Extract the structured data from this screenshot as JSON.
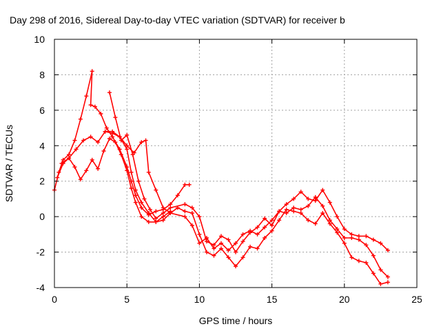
{
  "chart_data": {
    "type": "scatter",
    "marker": "plus",
    "title": "Day 298 of 2016, Sidereal Day-to-day VTEC variation (SDTVAR) for receiver b",
    "xlabel": "GPS time / hours",
    "ylabel": "SDTVAR / TECUs",
    "xlim": [
      0,
      25
    ],
    "ylim": [
      -4,
      10
    ],
    "xticks": [
      "0",
      "5",
      "10",
      "15",
      "20",
      "25"
    ],
    "yticks": [
      "-4",
      "-2",
      "0",
      "2",
      "4",
      "6",
      "8",
      "10"
    ],
    "grid": true,
    "colors": {
      "series": "#ff0000"
    },
    "series": [
      {
        "x": [
          0,
          0.3,
          0.6,
          1.0,
          1.4,
          1.8,
          2.2,
          2.6,
          2.5,
          2.8,
          3.2,
          3.6,
          4.0,
          4.5,
          5.0,
          5.3,
          5.6,
          6.0,
          6.5,
          7.0,
          7.5,
          8.0,
          8.5,
          9.0,
          9.3
        ],
        "y": [
          1.5,
          2.5,
          3.2,
          3.5,
          4.3,
          5.5,
          6.8,
          8.2,
          6.3,
          6.2,
          5.8,
          5.0,
          4.5,
          3.8,
          2.8,
          2.0,
          1.2,
          0.5,
          0.1,
          0.3,
          0.4,
          0.7,
          1.2,
          1.8,
          1.8
        ]
      },
      {
        "x": [
          0.2,
          0.6,
          1.0,
          1.4,
          1.8,
          2.2,
          2.6,
          3.0,
          3.4,
          3.8,
          4.2,
          4.6,
          5.0,
          5.3,
          5.6,
          6.0,
          6.5,
          7.0,
          7.5,
          8.0
        ],
        "y": [
          2.2,
          3.0,
          3.3,
          2.8,
          2.1,
          2.6,
          3.2,
          2.7,
          3.7,
          4.4,
          4.2,
          3.5,
          2.6,
          1.6,
          0.8,
          0.0,
          -0.3,
          -0.3,
          0.0,
          0.3
        ]
      },
      {
        "x": [
          0.5,
          1.0,
          1.5,
          2.0,
          2.5,
          3.0,
          3.5,
          4.0,
          4.5,
          5.0,
          5.5,
          6.0,
          6.3,
          6.5,
          7.0,
          7.5,
          8.0,
          9.0,
          9.5,
          10.0,
          10.5,
          11.0,
          11.5,
          12.0,
          12.5,
          13.0,
          13.5,
          14.0,
          14.5,
          15.0,
          15.5,
          16.0,
          16.5,
          17.0,
          17.5,
          18.0,
          18.5,
          19.0,
          19.5,
          20.0,
          20.5,
          21.0,
          21.5,
          22.0,
          22.5,
          23.0
        ],
        "y": [
          3.0,
          3.3,
          3.8,
          4.3,
          4.5,
          4.2,
          4.8,
          4.8,
          4.5,
          4.0,
          3.6,
          4.2,
          4.3,
          2.5,
          1.5,
          0.5,
          0.2,
          0.0,
          -0.5,
          -1.5,
          -1.2,
          -1.8,
          -1.5,
          -1.9,
          -1.5,
          -1.0,
          -0.8,
          -1.0,
          -0.6,
          -0.2,
          0.3,
          0.2,
          0.5,
          0.4,
          0.6,
          1.1,
          0.6,
          -0.2,
          -0.7,
          -1.2,
          -1.2,
          -1.3,
          -1.6,
          -2.2,
          -3.0,
          -3.4
        ]
      },
      {
        "x": [
          3.5,
          4.0,
          4.5,
          5.0,
          5.3,
          5.6,
          6.0,
          6.5,
          7.0,
          7.5,
          8.0,
          8.5,
          9.0,
          9.5,
          10.0,
          10.5,
          11.0,
          11.5,
          12.0,
          12.5,
          13.0,
          13.5,
          14.0,
          14.5,
          15.0,
          15.5,
          16.0,
          16.5,
          17.0,
          17.5,
          18.0,
          18.5,
          19.0,
          19.5,
          20.0,
          20.5,
          21.0,
          21.5,
          22.0,
          22.5,
          23.0
        ],
        "y": [
          4.8,
          4.7,
          4.5,
          3.8,
          2.5,
          1.5,
          0.8,
          0.2,
          -0.3,
          -0.2,
          0.2,
          0.5,
          0.3,
          0.2,
          -1.0,
          -2.0,
          -2.2,
          -1.8,
          -2.3,
          -2.8,
          -2.3,
          -1.7,
          -1.8,
          -1.2,
          -0.8,
          -0.2,
          0.4,
          0.3,
          0.2,
          -0.2,
          -0.4,
          0.2,
          -0.4,
          -0.9,
          -1.5,
          -2.3,
          -2.5,
          -2.6,
          -3.2,
          -3.8,
          -3.7
        ]
      },
      {
        "x": [
          3.8,
          4.2,
          4.6,
          5.0,
          5.4,
          5.8,
          6.2,
          6.6,
          7.0,
          7.5,
          8.0,
          9.0,
          9.5,
          10.0,
          10.5,
          11.0,
          11.5,
          12.0,
          12.5,
          13.0,
          13.5,
          14.0,
          14.5,
          15.0,
          15.5,
          16.0,
          16.5,
          17.0,
          17.5,
          18.0,
          18.5,
          19.0,
          19.5,
          20.0,
          20.5,
          21.0,
          21.5,
          22.0,
          22.5,
          23.0
        ],
        "y": [
          7.0,
          5.6,
          4.3,
          4.6,
          3.5,
          2.0,
          1.0,
          0.4,
          -0.1,
          0.2,
          0.5,
          0.7,
          0.5,
          0.0,
          -1.4,
          -1.6,
          -1.1,
          -1.3,
          -2.0,
          -1.4,
          -0.9,
          -0.6,
          -0.1,
          -0.5,
          0.3,
          0.7,
          1.0,
          1.4,
          1.0,
          0.9,
          1.5,
          0.8,
          0.0,
          -0.7,
          -1.0,
          -1.1,
          -1.1,
          -1.3,
          -1.5,
          -1.9
        ]
      }
    ]
  }
}
